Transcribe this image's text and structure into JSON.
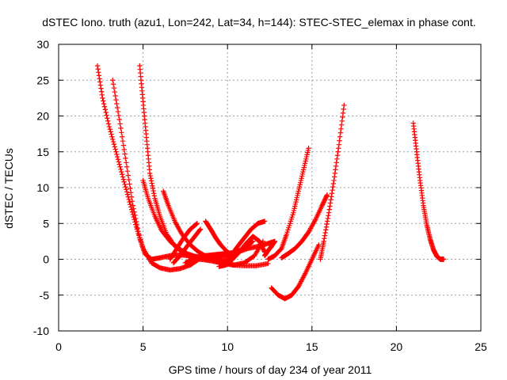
{
  "chart_data": {
    "type": "scatter",
    "title": "dSTEC Iono. truth (azu1, Lon=242, Lat=34, h=144): STEC-STEC_elemax in phase cont.",
    "xlabel": "GPS time / hours of day 234 of year 2011",
    "ylabel": "dSTEC  / TECUs",
    "xlim": [
      0,
      25
    ],
    "ylim": [
      -10,
      30
    ],
    "xticks": [
      0,
      5,
      10,
      15,
      20,
      25
    ],
    "yticks": [
      -10,
      -5,
      0,
      5,
      10,
      15,
      20,
      25,
      30
    ],
    "grid": true,
    "marker": "plus",
    "color": "#ff0000",
    "series": [
      {
        "x": [
          2.3,
          2.6,
          3.0,
          3.4,
          3.8,
          4.2,
          4.6,
          5.0,
          5.5,
          6.0,
          6.6,
          7.2,
          7.8,
          8.3
        ],
        "y": [
          27.0,
          22.5,
          18.5,
          15.0,
          11.5,
          8.0,
          4.5,
          1.5,
          -0.5,
          -1.2,
          -1.5,
          -1.3,
          -0.8,
          0.0
        ]
      },
      {
        "x": [
          3.2,
          3.6,
          4.0,
          4.4,
          4.8,
          5.1,
          5.5,
          6.0,
          6.6,
          7.2,
          7.8,
          8.4,
          9.0,
          9.6,
          10.1
        ],
        "y": [
          25.0,
          19.5,
          13.5,
          7.5,
          3.0,
          0.8,
          0.0,
          0.2,
          0.5,
          0.6,
          0.5,
          0.3,
          0.0,
          -0.2,
          -0.3
        ]
      },
      {
        "x": [
          4.8,
          5.0,
          5.2,
          5.4,
          5.7,
          6.0,
          6.4,
          6.9,
          7.4,
          7.9,
          8.4,
          9.0,
          9.6,
          10.3,
          11.0,
          11.7,
          12.4
        ],
        "y": [
          27.0,
          22.0,
          17.0,
          12.0,
          8.5,
          6.0,
          3.5,
          1.8,
          0.8,
          0.2,
          0.0,
          -0.2,
          -0.5,
          -0.8,
          -0.9,
          -0.9,
          -0.6
        ]
      },
      {
        "x": [
          5.0,
          5.3,
          5.7,
          6.1,
          6.6,
          7.1,
          7.6,
          8.2,
          8.8,
          9.4,
          10.0,
          10.6,
          11.2,
          11.8,
          12.4,
          12.8
        ],
        "y": [
          11.0,
          8.5,
          6.0,
          4.0,
          2.5,
          1.5,
          0.8,
          0.3,
          0.0,
          0.2,
          0.5,
          1.0,
          1.5,
          1.8,
          2.2,
          2.5
        ]
      },
      {
        "x": [
          6.2,
          6.5,
          6.9,
          7.3,
          7.8,
          8.3,
          8.8,
          9.3,
          9.8,
          10.4,
          11.0,
          11.6,
          12.1
        ],
        "y": [
          9.5,
          7.5,
          5.2,
          3.5,
          2.0,
          1.0,
          0.3,
          -0.2,
          -0.5,
          -0.8,
          -0.5,
          0.5,
          2.5
        ]
      },
      {
        "x": [
          6.6,
          7.0,
          7.4,
          7.8,
          8.2
        ],
        "y": [
          0.0,
          1.5,
          3.0,
          4.2,
          5.0
        ]
      },
      {
        "x": [
          6.8,
          7.2,
          7.6,
          8.0,
          8.4
        ],
        "y": [
          -0.5,
          0.5,
          1.8,
          3.0,
          4.2
        ]
      },
      {
        "x": [
          7.5,
          7.9,
          8.3,
          8.7,
          9.1,
          9.5,
          9.9,
          10.3,
          10.7,
          11.1,
          11.5
        ],
        "y": [
          -0.5,
          -0.1,
          0.2,
          0.5,
          0.6,
          0.7,
          0.8,
          0.9,
          1.2,
          1.8,
          2.5
        ]
      },
      {
        "x": [
          8.7,
          9.0,
          9.3,
          9.6,
          10.0,
          10.3
        ],
        "y": [
          5.3,
          4.2,
          3.0,
          2.0,
          1.0,
          0.5
        ]
      },
      {
        "x": [
          9.5,
          9.9,
          10.3,
          10.7,
          11.1,
          11.5,
          11.9,
          12.2
        ],
        "y": [
          -1.0,
          -0.8,
          0.0,
          1.0,
          2.2,
          3.2,
          2.5,
          1.0
        ]
      },
      {
        "x": [
          9.8,
          10.2,
          10.6,
          11.0,
          11.4,
          11.8,
          12.2
        ],
        "y": [
          -0.5,
          0.5,
          1.8,
          3.0,
          4.2,
          5.0,
          5.3
        ]
      },
      {
        "x": [
          12.2,
          12.4,
          12.6,
          12.8
        ],
        "y": [
          0.5,
          1.2,
          1.8,
          2.5
        ]
      },
      {
        "x": [
          12.4,
          12.8,
          13.2,
          13.5,
          13.9,
          14.2,
          14.5,
          14.8
        ],
        "y": [
          0.0,
          0.5,
          1.5,
          3.5,
          6.5,
          9.5,
          12.5,
          15.5
        ]
      },
      {
        "x": [
          13.2,
          13.6,
          14.0,
          14.4,
          14.8,
          15.2,
          15.6,
          15.9
        ],
        "y": [
          0.2,
          0.8,
          1.5,
          2.5,
          3.8,
          5.5,
          7.5,
          9.0
        ]
      },
      {
        "x": [
          12.6,
          13.0,
          13.4,
          13.8,
          14.2,
          14.6,
          15.0,
          15.4
        ],
        "y": [
          -4.0,
          -5.0,
          -5.5,
          -5.0,
          -3.8,
          -2.0,
          0.0,
          2.0
        ]
      },
      {
        "x": [
          15.5,
          15.7,
          16.0,
          16.3,
          16.6,
          16.9
        ],
        "y": [
          0.0,
          2.5,
          6.5,
          11.0,
          16.0,
          21.5
        ]
      },
      {
        "x": [
          21.0,
          21.2,
          21.4,
          21.6,
          21.8,
          22.0,
          22.2,
          22.4,
          22.6,
          22.8
        ],
        "y": [
          19.0,
          15.0,
          11.0,
          7.5,
          4.8,
          2.8,
          1.3,
          0.4,
          0.0,
          0.0
        ]
      }
    ]
  }
}
